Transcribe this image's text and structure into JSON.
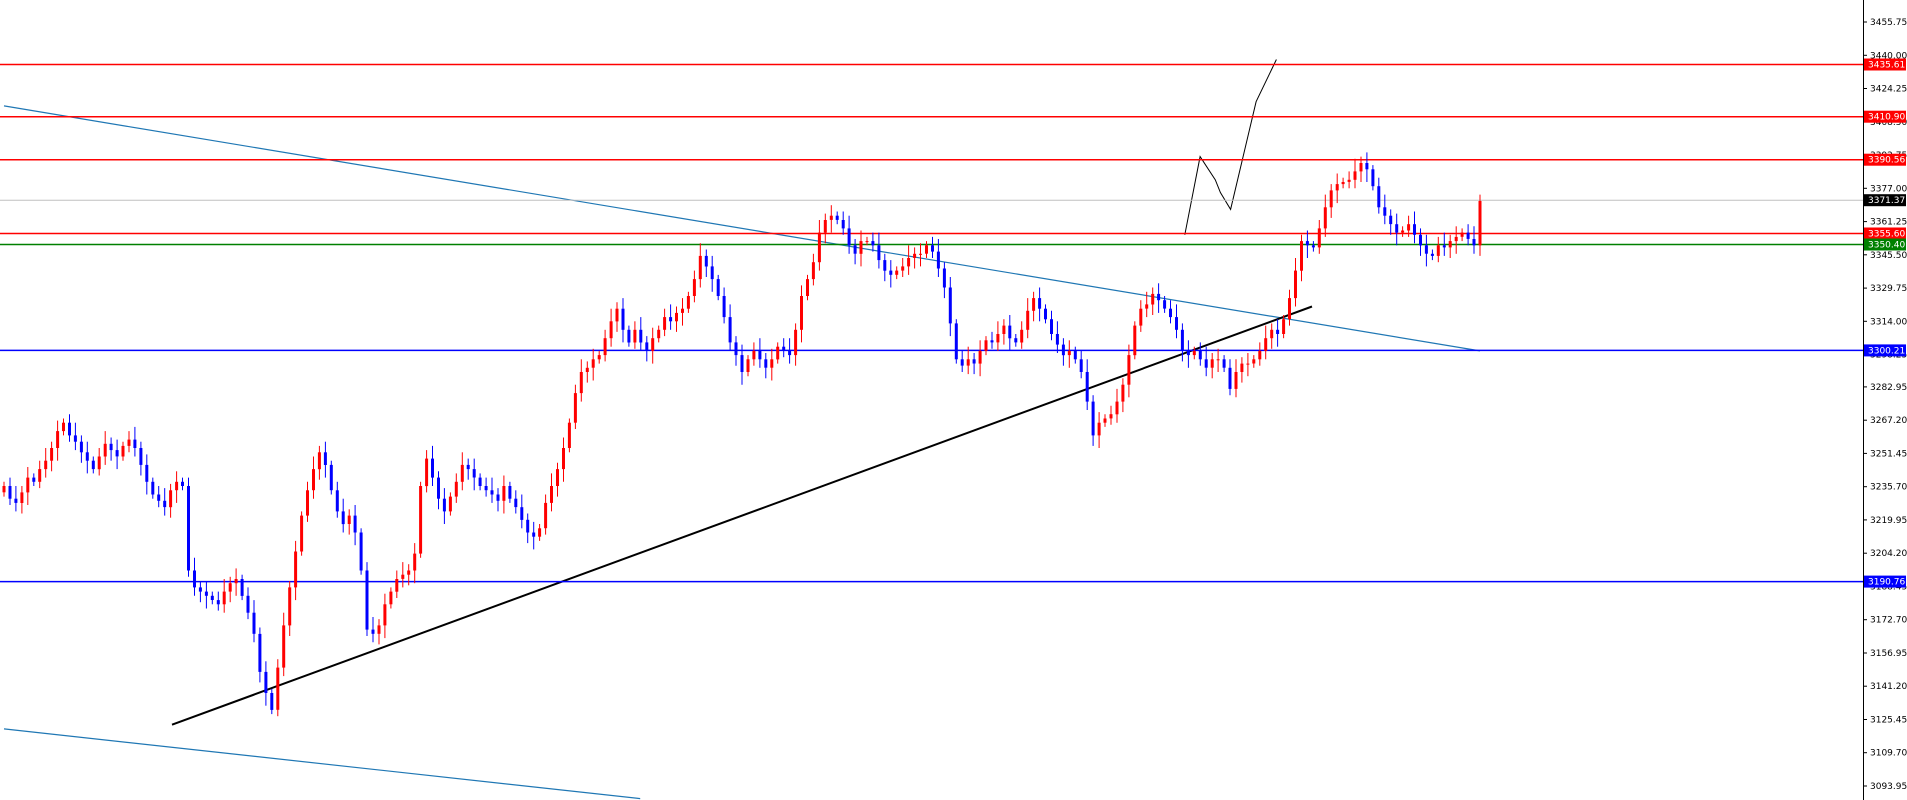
{
  "chart_data": {
    "type": "candlestick",
    "title": "",
    "xlabel": "",
    "ylabel": "",
    "ylim": [
      3085,
      3470
    ],
    "grid": false,
    "legend": "none",
    "colors": {
      "up": "#ff0000",
      "down": "#0000ff",
      "resistance": "#ff0000",
      "support": "#0000ff",
      "pivot": "#008000",
      "last": "#c0c0c0",
      "trend_channel": "#1f77b4",
      "trend_support": "#000000",
      "projection": "#000000"
    },
    "y_ticks": [
      "3455.75",
      "3440.00",
      "3424.25",
      "3408.50",
      "3392.75",
      "3377.00",
      "3361.25",
      "3345.50",
      "3329.75",
      "3314.00",
      "3298.25",
      "3282.95",
      "3267.20",
      "3251.45",
      "3235.70",
      "3219.95",
      "3204.20",
      "3188.45",
      "3172.70",
      "3156.95",
      "3141.20",
      "3125.45",
      "3109.70",
      "3093.95"
    ],
    "levels": [
      {
        "value": 3435.61,
        "label": "3435.61",
        "kind": "resistance"
      },
      {
        "value": 3410.9,
        "label": "3410.90",
        "kind": "resistance"
      },
      {
        "value": 3390.56,
        "label": "3390.56",
        "kind": "resistance"
      },
      {
        "value": 3355.6,
        "label": "3355.60",
        "kind": "resistance"
      },
      {
        "value": 3350.4,
        "label": "3350.40",
        "kind": "pivot"
      },
      {
        "value": 3300.21,
        "label": "3300.21",
        "kind": "support"
      },
      {
        "value": 3190.76,
        "label": "3190.76",
        "kind": "support"
      }
    ],
    "last_price": {
      "value": 3371.37,
      "label": "3371.37"
    },
    "x_range": [
      0,
      290
    ],
    "trendlines": [
      {
        "name": "channel-top",
        "kind": "trend_channel",
        "points": [
          [
            0,
            3416
          ],
          [
            290,
            3300
          ]
        ]
      },
      {
        "name": "channel-bottom",
        "kind": "trend_channel",
        "points": [
          [
            0,
            3121
          ],
          [
            125,
            3088
          ]
        ]
      },
      {
        "name": "support-line",
        "kind": "trend_support",
        "points": [
          [
            33,
            3123
          ],
          [
            257,
            3321
          ]
        ]
      },
      {
        "name": "forecast-path",
        "kind": "projection",
        "points": [
          [
            232,
            3355
          ],
          [
            235,
            3392
          ],
          [
            238,
            3381
          ],
          [
            239,
            3375
          ],
          [
            241,
            3367
          ],
          [
            246,
            3418
          ],
          [
            250,
            3438
          ]
        ]
      }
    ],
    "candles_close": [
      3236,
      3230,
      3228,
      3233,
      3240,
      3238,
      3244,
      3248,
      3254,
      3262,
      3266,
      3260,
      3257,
      3252,
      3248,
      3244,
      3250,
      3256,
      3253,
      3250,
      3255,
      3258,
      3254,
      3246,
      3238,
      3232,
      3229,
      3226,
      3234,
      3238,
      3236,
      3196,
      3188,
      3186,
      3184,
      3182,
      3180,
      3186,
      3190,
      3192,
      3184,
      3176,
      3166,
      3148,
      3138,
      3130,
      3150,
      3170,
      3188,
      3205,
      3222,
      3234,
      3244,
      3252,
      3246,
      3234,
      3224,
      3218,
      3222,
      3214,
      3196,
      3168,
      3166,
      3170,
      3180,
      3186,
      3192,
      3194,
      3196,
      3204,
      3236,
      3249,
      3240,
      3230,
      3224,
      3231,
      3238,
      3246,
      3244,
      3240,
      3236,
      3234,
      3232,
      3229,
      3236,
      3230,
      3226,
      3220,
      3214,
      3212,
      3216,
      3228,
      3236,
      3244,
      3254,
      3266,
      3280,
      3290,
      3292,
      3296,
      3298,
      3306,
      3314,
      3320,
      3310,
      3304,
      3310,
      3304,
      3300,
      3306,
      3310,
      3316,
      3314,
      3318,
      3320,
      3326,
      3334,
      3345,
      3340,
      3334,
      3326,
      3316,
      3304,
      3298,
      3290,
      3296,
      3300,
      3296,
      3292,
      3296,
      3302,
      3300,
      3298,
      3310,
      3326,
      3334,
      3342,
      3356,
      3362,
      3364,
      3362,
      3358,
      3350,
      3346,
      3352,
      3352,
      3350,
      3343,
      3338,
      3336,
      3338,
      3340,
      3344,
      3346,
      3346,
      3350,
      3347,
      3339,
      3330,
      3313,
      3296,
      3293,
      3296,
      3294,
      3300,
      3305,
      3304,
      3308,
      3312,
      3306,
      3304,
      3310,
      3319,
      3325,
      3320,
      3315,
      3308,
      3303,
      3298,
      3300,
      3296,
      3290,
      3276,
      3260,
      3266,
      3268,
      3270,
      3276,
      3284,
      3298,
      3312,
      3320,
      3322,
      3327,
      3324,
      3320,
      3316,
      3310,
      3300,
      3298,
      3300,
      3296,
      3292,
      3296,
      3296,
      3292,
      3282,
      3290,
      3294,
      3294,
      3296,
      3300,
      3306,
      3310,
      3308,
      3315,
      3325,
      3338,
      3352,
      3350,
      3349,
      3358,
      3368,
      3376,
      3379,
      3380,
      3381,
      3385,
      3389,
      3386,
      3378,
      3368,
      3364,
      3360,
      3356,
      3357,
      3360,
      3355,
      3350,
      3346,
      3345,
      3350,
      3349,
      3352,
      3354,
      3356,
      3353,
      3350,
      3371
    ]
  }
}
